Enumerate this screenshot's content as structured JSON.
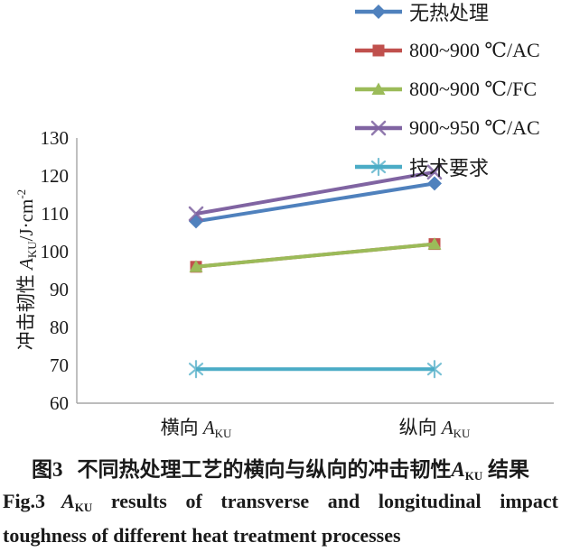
{
  "figure": {
    "caption_zh": {
      "fig_label": "图3",
      "body": "不同热处理工艺的横向与纵向的冲击韧性",
      "symbol": "A",
      "symbol_sub": "KU",
      "suffix": " 结果"
    },
    "caption_en": {
      "fig_label": "Fig.3",
      "symbol": "A",
      "symbol_sub": "KU",
      "body": " results of transverse and longitudinal impact toughness of different heat treatment processes"
    }
  },
  "axes": {
    "y_label": {
      "prefix": "冲击韧性 ",
      "symbol": "A",
      "symbol_sub": "KU",
      "unit": "/J·cm",
      "unit_sup": "-2"
    },
    "x_categories": [
      {
        "prefix": "横向 ",
        "symbol": "A",
        "symbol_sub": "KU"
      },
      {
        "prefix": "纵向 ",
        "symbol": "A",
        "symbol_sub": "KU"
      }
    ],
    "axis_color": "#a6a6a6"
  },
  "chart_data": {
    "type": "line",
    "title": "",
    "xlabel": "",
    "ylabel": "冲击韧性 AKU/J·cm-2",
    "categories": [
      "横向 AKU",
      "纵向 AKU"
    ],
    "series": [
      {
        "name": "无热处理",
        "values": [
          108,
          118
        ],
        "color": "#4F81BD",
        "marker": "diamond"
      },
      {
        "name": "800~900 ℃/AC",
        "values": [
          96,
          102
        ],
        "color": "#C0504D",
        "marker": "square"
      },
      {
        "name": "800~900 ℃/FC",
        "values": [
          96,
          102
        ],
        "color": "#9BBB59",
        "marker": "triangle"
      },
      {
        "name": "900~950 ℃/AC",
        "values": [
          110,
          121
        ],
        "color": "#8064A2",
        "marker": "x"
      },
      {
        "name": "技术要求",
        "values": [
          69,
          69
        ],
        "color": "#4BACC6",
        "marker": "asterisk"
      }
    ],
    "ylim": [
      60,
      130
    ],
    "ytick_step": 10,
    "grid": false,
    "legend_position": "top-right"
  }
}
